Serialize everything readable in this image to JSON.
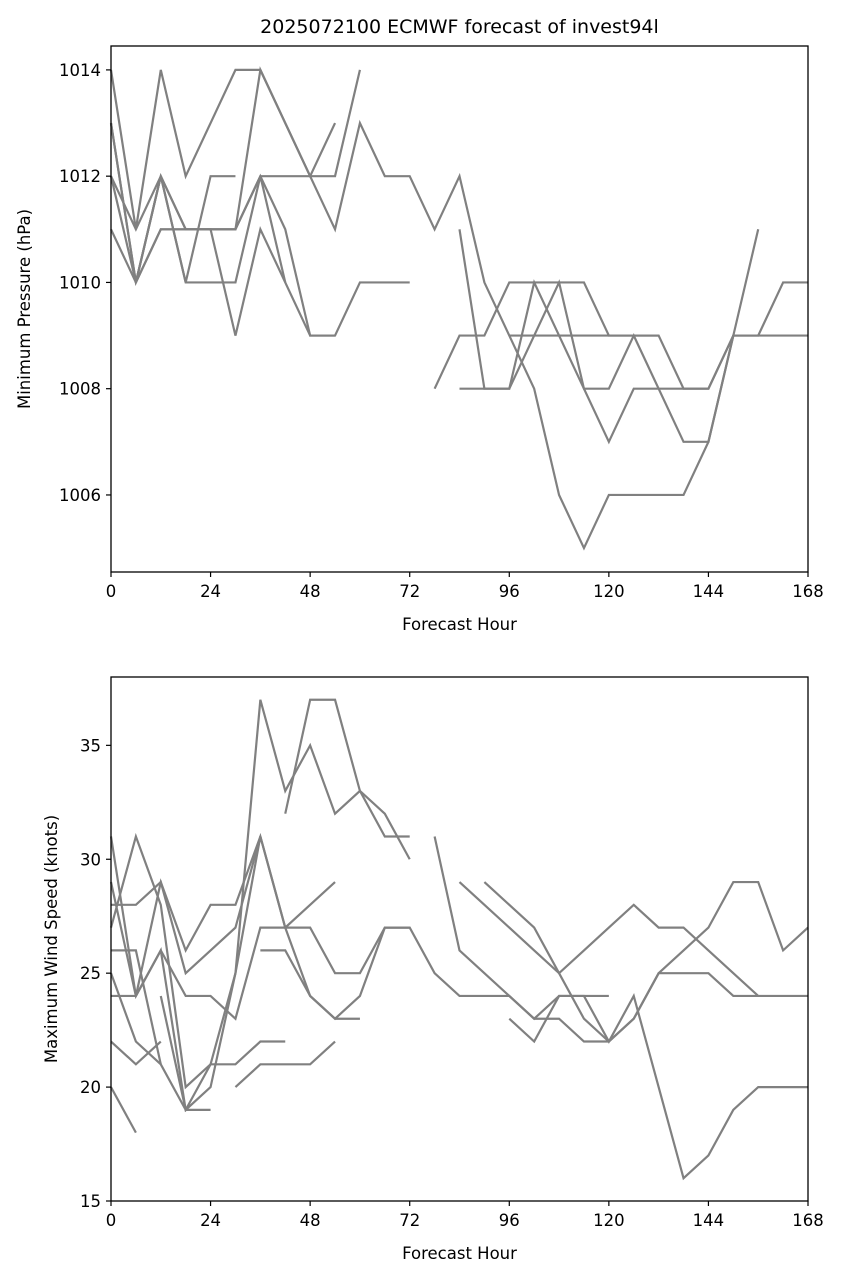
{
  "chart_data": [
    {
      "type": "line",
      "title": "2025072100 ECMWF forecast of invest94l",
      "xlabel": "Forecast Hour",
      "ylabel": "Minimum Pressure (hPa)",
      "xlim": [
        0,
        168
      ],
      "ylim": [
        1004.55,
        1014.45
      ],
      "xticks": [
        0,
        24,
        48,
        72,
        96,
        120,
        144,
        168
      ],
      "yticks": [
        1006,
        1008,
        1010,
        1012,
        1014
      ],
      "grid": false,
      "line_color": "#808080",
      "series": [
        {
          "x": [
            0,
            6,
            12,
            18,
            24,
            30,
            36,
            42,
            48,
            54,
            60,
            66,
            72,
            78,
            84,
            90,
            96,
            102,
            108,
            114,
            120,
            126,
            132,
            138,
            144,
            150,
            156,
            162,
            168
          ],
          "y": [
            1014,
            1011,
            1014,
            1012,
            1013,
            1014,
            1014,
            1013,
            1012,
            1011,
            1013,
            1012,
            1012,
            1011,
            1012,
            1010,
            1009,
            1008,
            1006,
            1005,
            1006,
            1006,
            1006,
            1006,
            1007,
            1009,
            1009,
            1010,
            1010
          ]
        },
        {
          "x": [
            0,
            6,
            12,
            18,
            24,
            30,
            36,
            42,
            48,
            54,
            60,
            66,
            72
          ],
          "y": [
            1013,
            1010,
            1012,
            1011,
            1011,
            1011,
            1012,
            1011,
            1009,
            1009,
            1010,
            1010,
            1010
          ]
        },
        {
          "x": [
            0,
            6,
            12,
            18,
            24,
            30,
            36,
            42,
            48,
            54,
            60
          ],
          "y": [
            1012,
            1011,
            1012,
            1011,
            1011,
            1011,
            1012,
            1012,
            1012,
            1012,
            1014
          ]
        },
        {
          "x": [
            0,
            6,
            12,
            18,
            24,
            30,
            36,
            42,
            48,
            54
          ],
          "y": [
            1013,
            1010,
            1011,
            1011,
            1011,
            1011,
            1014,
            1013,
            1012,
            1013
          ]
        },
        {
          "x": [
            0,
            6,
            12,
            18,
            24,
            30,
            36,
            42,
            48,
            54
          ],
          "y": [
            1011,
            1010,
            1011,
            1011,
            1011,
            1009,
            1011,
            1010,
            1009,
            1009
          ]
        },
        {
          "x": [
            0,
            6,
            12,
            18,
            24,
            30
          ],
          "y": [
            1012,
            1010,
            1012,
            1010,
            1012,
            1012
          ]
        },
        {
          "x": [
            6,
            12,
            18,
            24,
            30,
            36,
            42
          ],
          "y": [
            1010,
            1012,
            1010,
            1010,
            1010,
            1012,
            1010
          ]
        },
        {
          "x": [
            78,
            84,
            90,
            96,
            102,
            108,
            114,
            120,
            126,
            132,
            138,
            144,
            150,
            156
          ],
          "y": [
            1008,
            1009,
            1009,
            1010,
            1010,
            1010,
            1010,
            1009,
            1009,
            1009,
            1008,
            1008,
            1009,
            1011
          ]
        },
        {
          "x": [
            84,
            90,
            96,
            102,
            108,
            114,
            120,
            126,
            132,
            138,
            144,
            150,
            156,
            162,
            168
          ],
          "y": [
            1011,
            1008,
            1008,
            1010,
            1009,
            1008,
            1007,
            1008,
            1008,
            1008,
            1008,
            1009,
            1009,
            1009,
            1009
          ]
        },
        {
          "x": [
            84,
            90,
            96,
            102,
            108,
            114,
            120,
            126,
            132,
            138,
            144,
            150
          ],
          "y": [
            1008,
            1008,
            1008,
            1009,
            1010,
            1008,
            1008,
            1009,
            1008,
            1007,
            1007,
            1009
          ]
        },
        {
          "x": [
            96,
            102,
            108,
            114,
            120,
            126,
            132
          ],
          "y": [
            1009,
            1009,
            1009,
            1009,
            1009,
            1009,
            1009
          ]
        }
      ]
    },
    {
      "type": "line",
      "title": "",
      "xlabel": "Forecast Hour",
      "ylabel": "Maximum Wind Speed (knots)",
      "xlim": [
        0,
        168
      ],
      "ylim": [
        15,
        38
      ],
      "xticks": [
        0,
        24,
        48,
        72,
        96,
        120,
        144,
        168
      ],
      "yticks": [
        15,
        20,
        25,
        30,
        35
      ],
      "grid": false,
      "line_color": "#808080",
      "series": [
        {
          "x": [
            0,
            6,
            12,
            18,
            24,
            30,
            36,
            42,
            48,
            54,
            60,
            66,
            72,
            78,
            84,
            90,
            96,
            102,
            108,
            114,
            120,
            126,
            132,
            138,
            144,
            150,
            156,
            162,
            168
          ],
          "y": [
            29,
            24,
            26,
            19,
            20,
            25,
            31,
            27,
            27,
            25,
            25,
            27,
            27,
            25,
            24,
            24,
            24,
            23,
            24,
            24,
            22,
            24,
            20,
            16,
            17,
            19,
            20,
            20,
            20
          ]
        },
        {
          "x": [
            0,
            6,
            12,
            18,
            24,
            30,
            36,
            42,
            48,
            54,
            60,
            66,
            72
          ],
          "y": [
            27,
            31,
            28,
            20,
            21,
            25,
            37,
            33,
            35,
            32,
            33,
            31,
            31
          ]
        },
        {
          "x": [
            0,
            6,
            12,
            18,
            24,
            30,
            36,
            42,
            48,
            54,
            60,
            66,
            72
          ],
          "y": [
            31,
            24,
            29,
            26,
            28,
            28,
            31,
            27,
            24,
            23,
            24,
            27,
            27
          ]
        },
        {
          "x": [
            0,
            6,
            12,
            18,
            24,
            30,
            36
          ],
          "y": [
            28,
            28,
            29,
            25,
            26,
            27,
            31
          ]
        },
        {
          "x": [
            0,
            6,
            12,
            18,
            24,
            30,
            36,
            42
          ],
          "y": [
            25,
            22,
            21,
            19,
            21,
            21,
            22,
            22
          ]
        },
        {
          "x": [
            0,
            6,
            12,
            18,
            24,
            30,
            36,
            42,
            48,
            54
          ],
          "y": [
            24,
            24,
            26,
            24,
            24,
            23,
            27,
            27,
            28,
            29
          ]
        },
        {
          "x": [
            0,
            6,
            12
          ],
          "y": [
            22,
            21,
            22
          ]
        },
        {
          "x": [
            0,
            6
          ],
          "y": [
            20,
            18
          ]
        },
        {
          "x": [
            0,
            6,
            12
          ],
          "y": [
            26,
            26,
            21
          ]
        },
        {
          "x": [
            12,
            18,
            24
          ],
          "y": [
            24,
            19,
            19
          ]
        },
        {
          "x": [
            30,
            36,
            42,
            48,
            54
          ],
          "y": [
            20,
            21,
            21,
            21,
            22
          ]
        },
        {
          "x": [
            36,
            42,
            48,
            54,
            60
          ],
          "y": [
            26,
            26,
            24,
            23,
            23
          ]
        },
        {
          "x": [
            42,
            48,
            54,
            60,
            66,
            72
          ],
          "y": [
            32,
            37,
            37,
            33,
            32,
            30
          ]
        },
        {
          "x": [
            78,
            84,
            90,
            96,
            102,
            108,
            114,
            120,
            126,
            132,
            138,
            144,
            150,
            156
          ],
          "y": [
            31,
            26,
            25,
            24,
            23,
            23,
            22,
            22,
            23,
            25,
            25,
            25,
            24,
            24
          ]
        },
        {
          "x": [
            84,
            90,
            96,
            102,
            108,
            114,
            120,
            126,
            132,
            138,
            144,
            150,
            156,
            162,
            168
          ],
          "y": [
            29,
            28,
            27,
            26,
            25,
            26,
            27,
            28,
            27,
            27,
            26,
            25,
            24,
            24,
            24
          ]
        },
        {
          "x": [
            90,
            96,
            102,
            108,
            114,
            120,
            126,
            132,
            138,
            144,
            150,
            156,
            162,
            168
          ],
          "y": [
            29,
            28,
            27,
            25,
            23,
            22,
            23,
            25,
            26,
            27,
            29,
            29,
            26,
            27
          ]
        },
        {
          "x": [
            96,
            102,
            108,
            114,
            120
          ],
          "y": [
            23,
            22,
            24,
            24,
            24
          ]
        }
      ]
    }
  ]
}
